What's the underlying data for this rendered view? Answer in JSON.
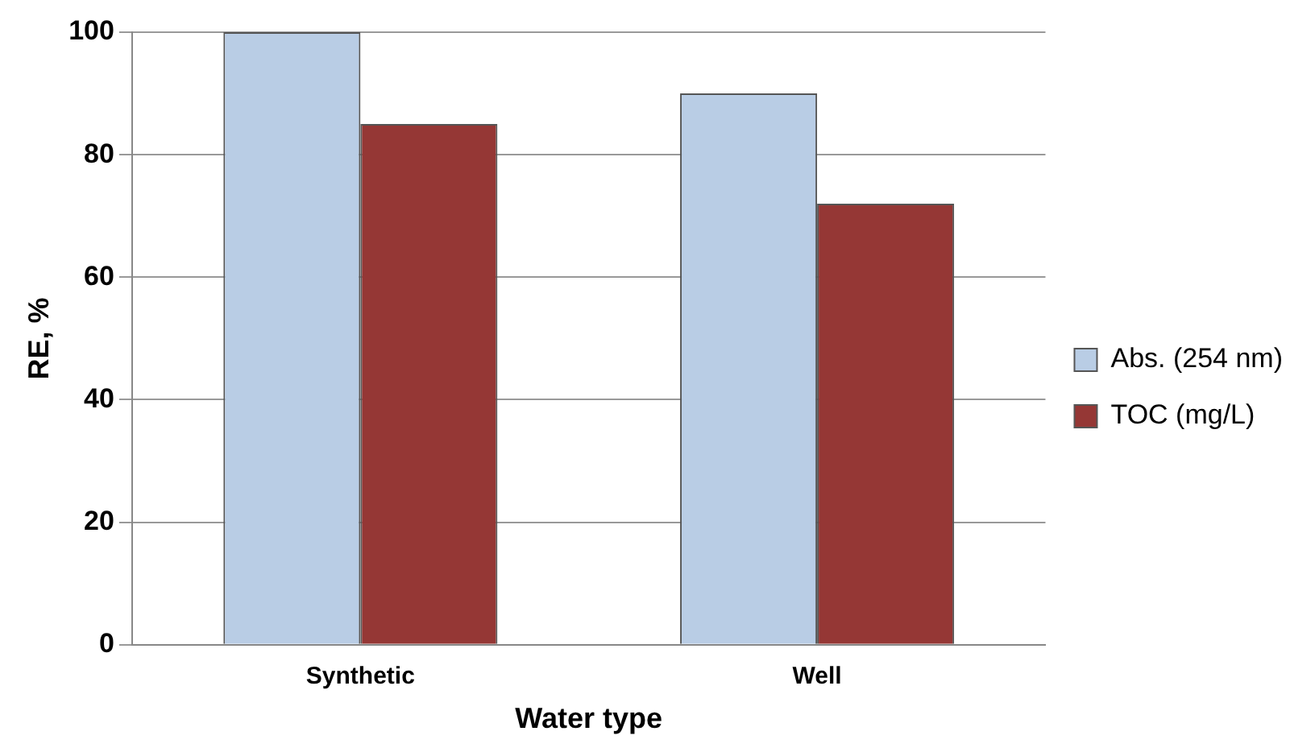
{
  "chart_data": {
    "type": "bar",
    "xlabel": "Water type",
    "ylabel": "RE, %",
    "categories": [
      "Synthetic",
      "Well"
    ],
    "series": [
      {
        "name": "Abs. (254 nm)",
        "color": "#b9cde5",
        "values": [
          100,
          90
        ]
      },
      {
        "name": "TOC (mg/L)",
        "color": "#953735",
        "values": [
          85,
          72
        ]
      }
    ],
    "ylim": [
      0,
      100
    ],
    "yticks": [
      0,
      20,
      40,
      60,
      80,
      100
    ],
    "grid": "y",
    "legend": "right"
  }
}
